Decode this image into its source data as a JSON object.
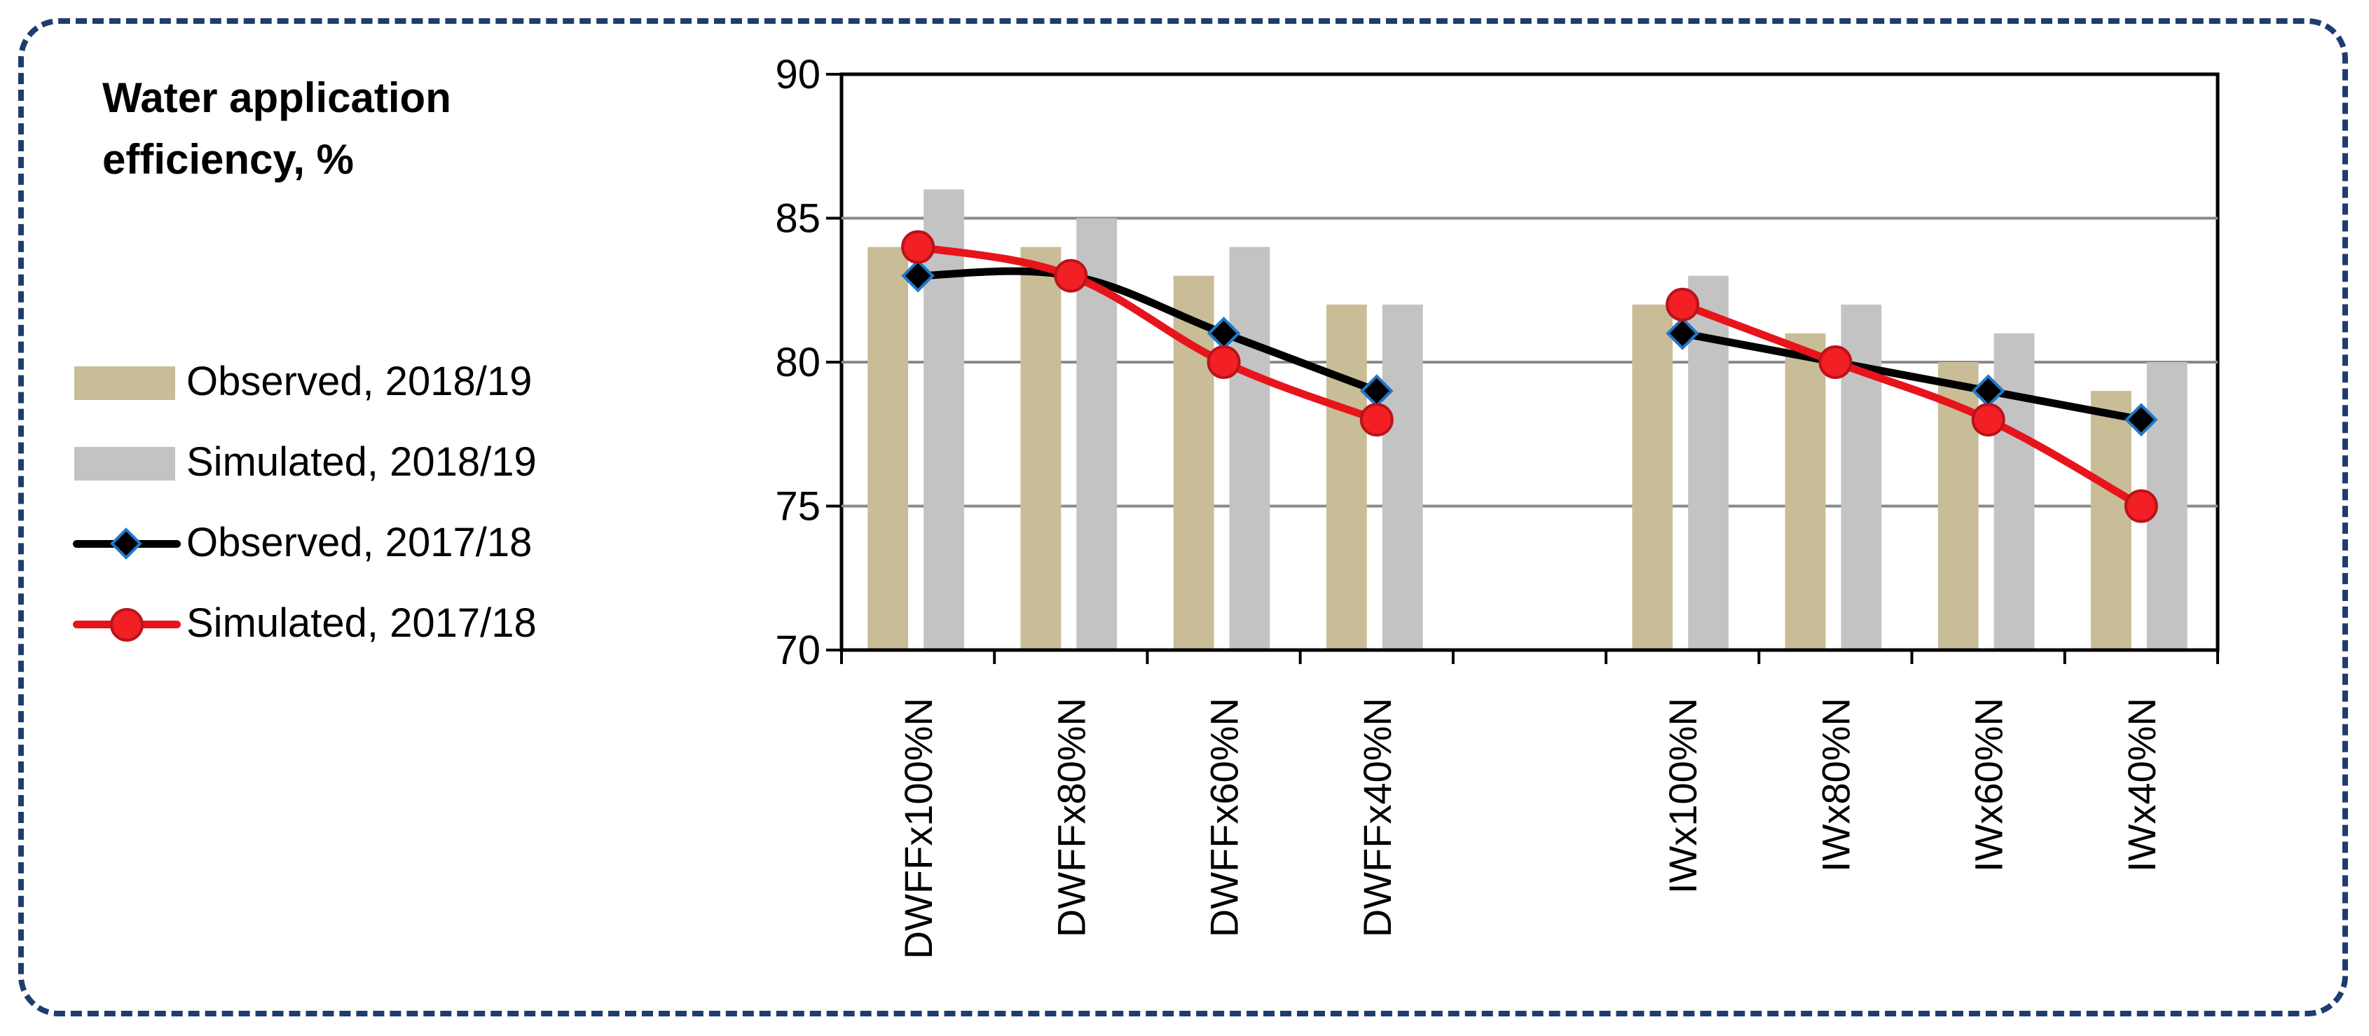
{
  "title": "Water application efficiency, %",
  "chart_data": {
    "type": "bar",
    "categories": [
      "DWFFx100%N",
      "DWFFx80%N",
      "DWFFx60%N",
      "DWFFx40%N",
      "",
      "IWx100%N",
      "IWx80%N",
      "IWx60%N",
      "IWx40%N"
    ],
    "ylim": [
      70,
      90
    ],
    "yticks": [
      70,
      75,
      80,
      85,
      90
    ],
    "grid": true,
    "legend_position": "left",
    "colors": {
      "observed_bar": "#c8bd96",
      "simulated_bar": "#c3c3c3",
      "observed_line": "#000000",
      "observed_marker": "#1f78c8",
      "simulated_line": "#e8141c",
      "simulated_marker": "#f21f24"
    },
    "series": [
      {
        "name": "Observed, 2018/19",
        "kind": "bar",
        "values": [
          84,
          84,
          83,
          82,
          null,
          82,
          81,
          80,
          79
        ]
      },
      {
        "name": "Simulated, 2018/19",
        "kind": "bar",
        "values": [
          86,
          85,
          84,
          82,
          null,
          83,
          82,
          81,
          80
        ]
      },
      {
        "name": "Observed, 2017/18",
        "kind": "line",
        "marker": "diamond",
        "values": [
          83,
          83,
          81,
          79,
          null,
          81,
          80,
          79,
          78
        ]
      },
      {
        "name": "Simulated, 2017/18",
        "kind": "line",
        "marker": "circle",
        "values": [
          84,
          83,
          80,
          78,
          null,
          82,
          80,
          78,
          75
        ]
      }
    ]
  }
}
